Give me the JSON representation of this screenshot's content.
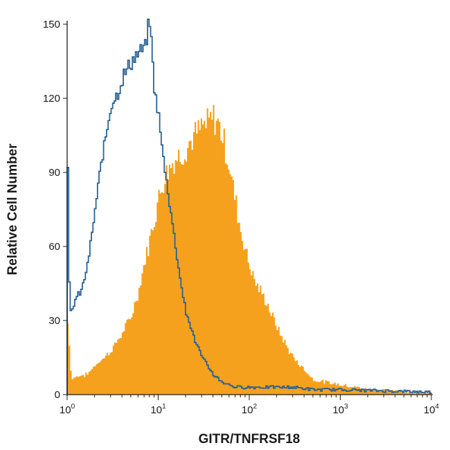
{
  "chart_data": {
    "type": "area",
    "title": "",
    "xlabel": "GITR/TNFRSF18",
    "ylabel": "Relative Cell Number",
    "x_scale": "log",
    "xlim": [
      1,
      10000
    ],
    "ylim": [
      0,
      150
    ],
    "x_ticks": [
      {
        "value": 1,
        "base": "10",
        "exp": "0"
      },
      {
        "value": 10,
        "base": "10",
        "exp": "1"
      },
      {
        "value": 100,
        "base": "10",
        "exp": "2"
      },
      {
        "value": 1000,
        "base": "10",
        "exp": "3"
      },
      {
        "value": 10000,
        "base": "10",
        "exp": "4"
      }
    ],
    "y_ticks": [
      0,
      30,
      60,
      90,
      120,
      150
    ],
    "grid": false,
    "legend": "none",
    "series": [
      {
        "style": "filled",
        "color": "#f5a11e",
        "x": [
          1,
          1.1,
          1.2,
          1.4,
          1.6,
          1.8,
          2,
          2.5,
          3,
          4,
          5,
          6,
          7,
          8,
          9,
          10,
          12,
          14,
          16,
          18,
          20,
          25,
          30,
          35,
          40,
          45,
          50,
          60,
          70,
          80,
          100,
          120,
          150,
          200,
          250,
          300,
          400,
          500,
          700,
          1000,
          1500,
          2000,
          3000,
          5000,
          7000,
          10000
        ],
        "y": [
          29,
          6,
          7,
          8,
          8,
          10,
          12,
          15,
          18,
          25,
          32,
          42,
          54,
          63,
          72,
          80,
          90,
          94,
          96,
          98,
          100,
          105,
          108,
          110,
          112,
          110,
          105,
          92,
          78,
          66,
          52,
          44,
          38,
          27,
          20,
          15,
          10,
          6,
          5,
          4,
          3,
          2,
          2,
          1,
          1,
          1
        ]
      },
      {
        "style": "outline",
        "color": "#2a6294",
        "x": [
          1,
          1.05,
          1.1,
          1.2,
          1.4,
          1.6,
          1.8,
          2,
          2.3,
          2.7,
          3,
          3.5,
          4,
          5,
          6,
          7,
          8,
          8.5,
          9,
          10,
          11,
          12,
          14,
          16,
          18,
          20,
          25,
          30,
          40,
          50,
          70,
          100,
          150,
          200,
          300,
          500,
          1000,
          10000
        ],
        "y": [
          92,
          32,
          34,
          38,
          42,
          50,
          62,
          75,
          92,
          108,
          118,
          122,
          128,
          135,
          138,
          140,
          152,
          135,
          123,
          112,
          98,
          88,
          70,
          55,
          42,
          33,
          22,
          15,
          8,
          5,
          3,
          3,
          3,
          3,
          3,
          2,
          2,
          1
        ]
      }
    ]
  }
}
